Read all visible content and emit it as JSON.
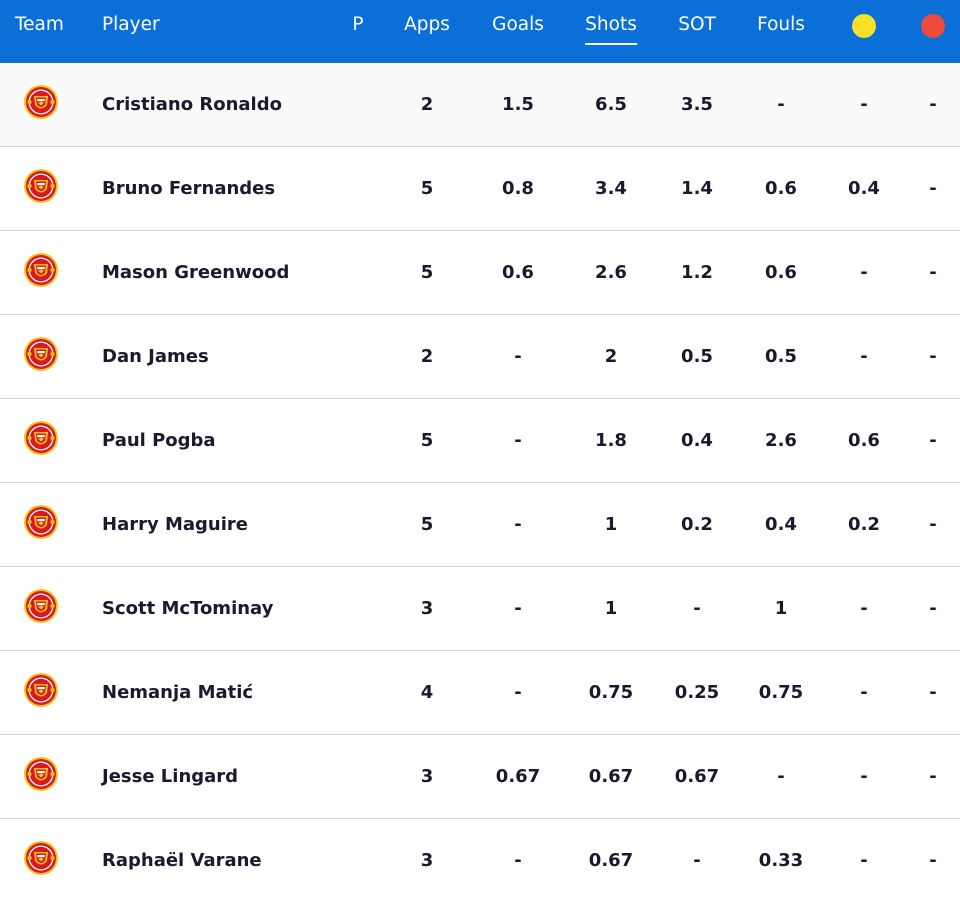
{
  "header": {
    "team": "Team",
    "player": "Player",
    "p": "P",
    "apps": "Apps",
    "goals": "Goals",
    "shots": "Shots",
    "sot": "SOT",
    "fouls": "Fouls",
    "sorted_by": "Shots",
    "yellow_card_icon": "yellow-card-icon",
    "red_card_icon": "red-card-icon",
    "bg_color": "#0a6fd6",
    "yellow_color": "#f7e229",
    "red_color": "#ec4a3c"
  },
  "team_icon": "manchester-united-crest-icon",
  "rows": [
    {
      "player": "Cristiano Ronaldo",
      "apps": "2",
      "goals": "1.5",
      "shots": "6.5",
      "sot": "3.5",
      "fouls": "-",
      "yellow": "-",
      "red": "-"
    },
    {
      "player": "Bruno Fernandes",
      "apps": "5",
      "goals": "0.8",
      "shots": "3.4",
      "sot": "1.4",
      "fouls": "0.6",
      "yellow": "0.4",
      "red": "-"
    },
    {
      "player": "Mason Greenwood",
      "apps": "5",
      "goals": "0.6",
      "shots": "2.6",
      "sot": "1.2",
      "fouls": "0.6",
      "yellow": "-",
      "red": "-"
    },
    {
      "player": "Dan James",
      "apps": "2",
      "goals": "-",
      "shots": "2",
      "sot": "0.5",
      "fouls": "0.5",
      "yellow": "-",
      "red": "-"
    },
    {
      "player": "Paul Pogba",
      "apps": "5",
      "goals": "-",
      "shots": "1.8",
      "sot": "0.4",
      "fouls": "2.6",
      "yellow": "0.6",
      "red": "-"
    },
    {
      "player": "Harry Maguire",
      "apps": "5",
      "goals": "-",
      "shots": "1",
      "sot": "0.2",
      "fouls": "0.4",
      "yellow": "0.2",
      "red": "-"
    },
    {
      "player": "Scott McTominay",
      "apps": "3",
      "goals": "-",
      "shots": "1",
      "sot": "-",
      "fouls": "1",
      "yellow": "-",
      "red": "-"
    },
    {
      "player": "Nemanja Matić",
      "apps": "4",
      "goals": "-",
      "shots": "0.75",
      "sot": "0.25",
      "fouls": "0.75",
      "yellow": "-",
      "red": "-"
    },
    {
      "player": "Jesse Lingard",
      "apps": "3",
      "goals": "0.67",
      "shots": "0.67",
      "sot": "0.67",
      "fouls": "-",
      "yellow": "-",
      "red": "-"
    },
    {
      "player": "Raphaël Varane",
      "apps": "3",
      "goals": "-",
      "shots": "0.67",
      "sot": "-",
      "fouls": "0.33",
      "yellow": "-",
      "red": "-"
    }
  ]
}
